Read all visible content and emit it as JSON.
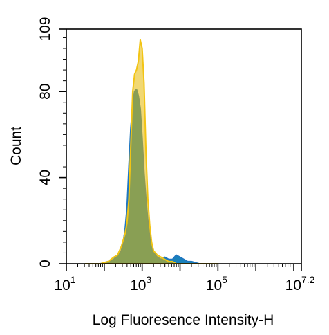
{
  "chart_data": {
    "type": "area",
    "title": "",
    "xlabel": "Log Fluoresence Intensity-H",
    "ylabel": "Count",
    "x_scale": "log10",
    "xlim": [
      1,
      7.2
    ],
    "ylim": [
      0,
      109
    ],
    "grid": false,
    "legend": "none",
    "x_ticks": [
      {
        "base": "10",
        "exp": "1"
      },
      {
        "base": "10",
        "exp": "3"
      },
      {
        "base": "10",
        "exp": "5"
      },
      {
        "base": "10",
        "exp": "7.2"
      }
    ],
    "y_ticks": [
      "0",
      "40",
      "80",
      "109"
    ],
    "series": [
      {
        "color": "#1f77c0",
        "fill": "#0d7ab6",
        "x": [
          1.5,
          1.9,
          2.1,
          2.25,
          2.35,
          2.45,
          2.5,
          2.55,
          2.6,
          2.65,
          2.7,
          2.75,
          2.8,
          2.85,
          2.9,
          2.95,
          3.0,
          3.05,
          3.1,
          3.15,
          3.2,
          3.25,
          3.3,
          3.35,
          3.4,
          3.5,
          3.6,
          3.7,
          3.8,
          3.9,
          4.0,
          4.1,
          4.2,
          4.3,
          4.5,
          5.0
        ],
        "y": [
          0,
          0,
          1,
          2,
          4,
          6,
          10,
          16,
          26,
          45,
          63,
          74,
          80,
          81,
          78,
          72,
          58,
          42,
          30,
          20,
          13,
          9,
          6,
          4,
          3,
          2,
          3,
          2,
          2,
          4,
          3,
          2,
          1,
          1,
          0,
          0
        ]
      },
      {
        "color": "#f2c414",
        "fill": "#e6b800",
        "x": [
          1.5,
          1.9,
          2.1,
          2.25,
          2.35,
          2.45,
          2.55,
          2.6,
          2.65,
          2.7,
          2.75,
          2.8,
          2.85,
          2.9,
          2.95,
          3.0,
          3.05,
          3.1,
          3.15,
          3.2,
          3.25,
          3.3,
          3.4,
          3.5,
          3.6,
          3.7,
          3.8,
          3.9,
          4.0,
          5.0
        ],
        "y": [
          0,
          0,
          1,
          3,
          4,
          8,
          14,
          19,
          30,
          55,
          80,
          88,
          90,
          94,
          104,
          100,
          84,
          52,
          30,
          18,
          10,
          6,
          4,
          3,
          2,
          1,
          1,
          0,
          0,
          0
        ]
      }
    ]
  }
}
